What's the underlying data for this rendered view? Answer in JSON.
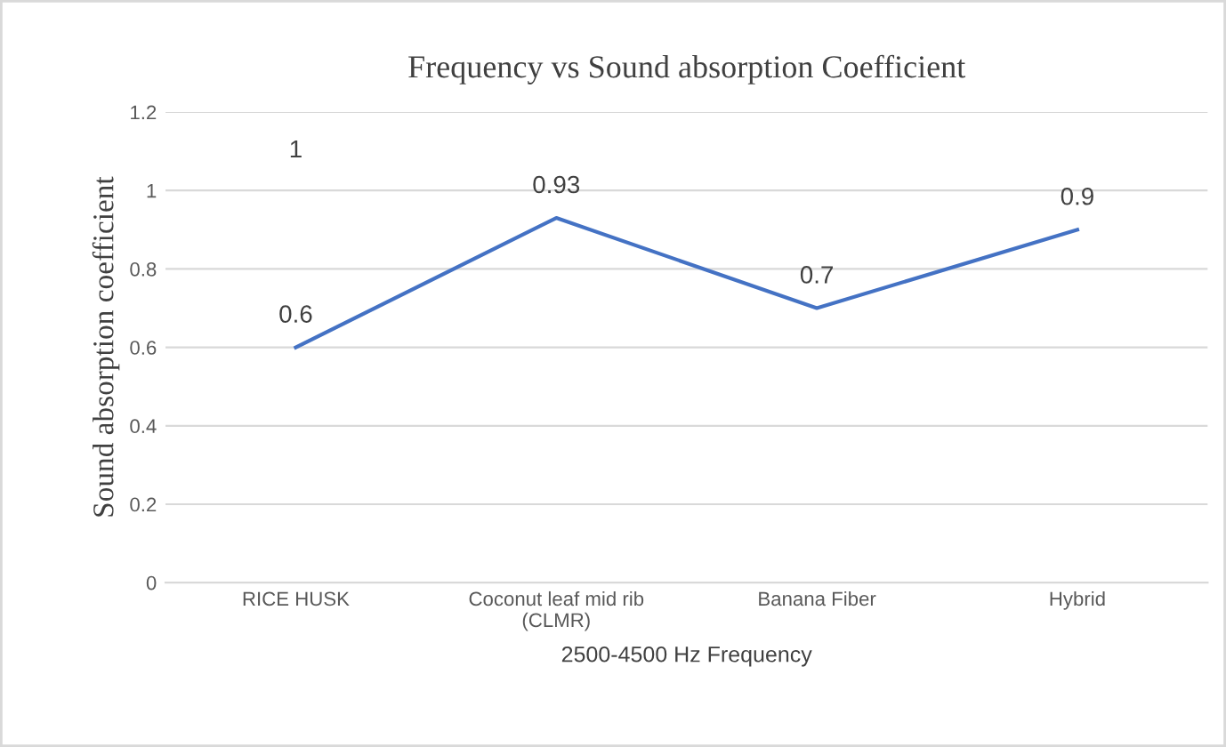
{
  "chart_data": {
    "type": "line",
    "title": "Frequency vs Sound absorption Coefficient",
    "xlabel": "2500-4500 Hz Frequency",
    "ylabel": "Sound absorption coefficient",
    "categories": [
      "RICE HUSK",
      "Coconut leaf mid rib\n(CLMR)",
      "Banana Fiber",
      "Hybrid"
    ],
    "series": [
      {
        "color": "#4472c4",
        "values": [
          0.6,
          0.93,
          0.7,
          0.9
        ]
      }
    ],
    "data_labels": true,
    "ylim": [
      0,
      1.2
    ],
    "yticks": [
      0,
      0.2,
      0.4,
      0.6,
      0.8,
      1,
      1.2
    ],
    "grid": "y",
    "marker": "none",
    "line_style": "solid",
    "annotations": [
      "1"
    ]
  }
}
